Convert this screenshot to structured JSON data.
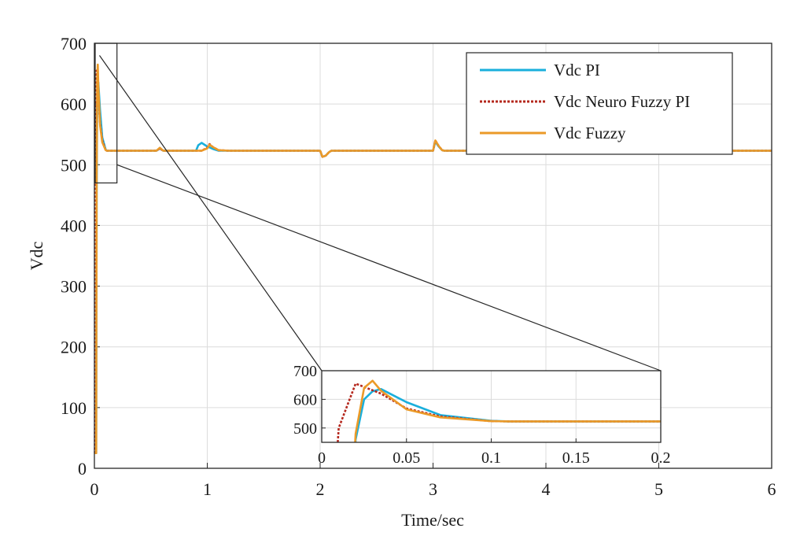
{
  "chart_data": {
    "type": "line",
    "title": "",
    "xlabel": "Time/sec",
    "ylabel": "Vdc",
    "xlim": [
      0,
      6
    ],
    "ylim": [
      0,
      700
    ],
    "xticks": [
      "0",
      "1",
      "2",
      "3",
      "4",
      "5",
      "6"
    ],
    "yticks": [
      "0",
      "100",
      "200",
      "300",
      "400",
      "500",
      "600",
      "700"
    ],
    "grid": true,
    "legend_position": "top-right",
    "series": [
      {
        "name": "Vdc PI",
        "color": "#1aafdc",
        "style": "solid",
        "x": [
          0,
          0.016,
          0.02,
          0.025,
          0.03,
          0.035,
          0.05,
          0.07,
          0.1,
          0.11,
          0.2,
          0.55,
          0.58,
          0.61,
          0.62,
          0.9,
          0.92,
          0.95,
          1.0,
          1.05,
          1.1,
          1.2,
          2.0,
          2.02,
          2.05,
          2.08,
          2.1,
          3.0,
          3.02,
          3.05,
          3.08,
          3.1,
          6.0
        ],
        "y": [
          25,
          25,
          460,
          600,
          628,
          636,
          590,
          545,
          525,
          523,
          523,
          523,
          527,
          523,
          523,
          523,
          532,
          536,
          530,
          526,
          523,
          523,
          523,
          513,
          515,
          521,
          523,
          523,
          538,
          530,
          524,
          523,
          523
        ]
      },
      {
        "name": "Vdc Neuro Fuzzy PI",
        "color": "#b5281e",
        "style": "dotted",
        "x": [
          0,
          0.005,
          0.01,
          0.02,
          0.035,
          0.05,
          0.07,
          0.1,
          0.11,
          0.2,
          0.55,
          0.58,
          0.61,
          0.62,
          0.95,
          1.0,
          1.02,
          1.05,
          1.1,
          1.2,
          2.0,
          2.02,
          2.05,
          2.08,
          2.1,
          3.0,
          3.02,
          3.05,
          3.08,
          3.1,
          6.0
        ],
        "y": [
          25,
          25,
          500,
          655,
          620,
          568,
          540,
          524,
          523,
          523,
          523,
          527,
          523,
          523,
          523,
          528,
          534,
          529,
          524,
          523,
          523,
          513,
          515,
          521,
          523,
          523,
          540,
          531,
          524,
          523,
          523
        ]
      },
      {
        "name": "Vdc Fuzzy",
        "color": "#eb9a28",
        "style": "solid",
        "x": [
          0,
          0.016,
          0.02,
          0.025,
          0.03,
          0.035,
          0.05,
          0.07,
          0.1,
          0.11,
          0.2,
          0.55,
          0.58,
          0.61,
          0.62,
          0.95,
          1.0,
          1.02,
          1.05,
          1.1,
          1.2,
          2.0,
          2.02,
          2.05,
          2.08,
          2.1,
          3.0,
          3.02,
          3.05,
          3.08,
          3.1,
          6.0
        ],
        "y": [
          25,
          25,
          480,
          640,
          665,
          630,
          565,
          537,
          524,
          523,
          523,
          523,
          528,
          523,
          523,
          523,
          527,
          533,
          529,
          524,
          523,
          523,
          513,
          515,
          521,
          523,
          523,
          540,
          531,
          524,
          523,
          523
        ]
      }
    ],
    "inset": {
      "xlim": [
        0,
        0.2
      ],
      "ylim": [
        450,
        700
      ],
      "xticks": [
        "0",
        "0.05",
        "0.1",
        "0.15",
        "0.2"
      ],
      "yticks": [
        "500",
        "600",
        "700"
      ],
      "zoom_region": {
        "x": [
          0,
          0.2
        ],
        "y": [
          470,
          700
        ]
      }
    }
  }
}
